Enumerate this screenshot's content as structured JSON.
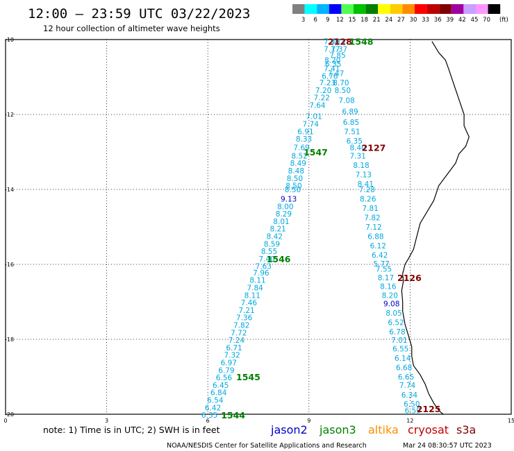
{
  "header": {
    "title": "12:00 – 23:59 UTC 03/22/2023",
    "subtitle": "12 hour collection of altimeter wave heights"
  },
  "legend": {
    "unit": "(ft)",
    "items": [
      {
        "label": "3",
        "color": "#808080"
      },
      {
        "label": "6",
        "color": "#00ffff"
      },
      {
        "label": "9",
        "color": "#00b4ff"
      },
      {
        "label": "12",
        "color": "#0000ff"
      },
      {
        "label": "15",
        "color": "#50ff50"
      },
      {
        "label": "18",
        "color": "#00c000"
      },
      {
        "label": "21",
        "color": "#008000"
      },
      {
        "label": "24",
        "color": "#ffff00"
      },
      {
        "label": "27",
        "color": "#ffcc00"
      },
      {
        "label": "30",
        "color": "#ff8c00"
      },
      {
        "label": "33",
        "color": "#ff0000"
      },
      {
        "label": "36",
        "color": "#c00000"
      },
      {
        "label": "39",
        "color": "#800000"
      },
      {
        "label": "42",
        "color": "#a000a0"
      },
      {
        "label": "45",
        "color": "#c8a0ff"
      },
      {
        "label": "70",
        "color": "#ff96ff"
      },
      {
        "label": "",
        "color": "#000000"
      }
    ]
  },
  "map": {
    "lon_ticks": [
      "0",
      "3",
      "6",
      "9",
      "12",
      "15"
    ],
    "lat_ticks": [
      "-10",
      "-12",
      "-14",
      "-16",
      "-18",
      "-20"
    ],
    "colors": {
      "swh_light": "#00a8e0",
      "swh_dark": "#0000c0",
      "jason3": "#008000",
      "cryosat": "#800000",
      "coast": "#000000",
      "grid": "#000000"
    },
    "coastline": [
      [
        12.65,
        -10.05
      ],
      [
        12.85,
        -10.35
      ],
      [
        13.05,
        -10.55
      ],
      [
        13.15,
        -10.8
      ],
      [
        13.3,
        -11.2
      ],
      [
        13.45,
        -11.6
      ],
      [
        13.6,
        -12.0
      ],
      [
        13.6,
        -12.3
      ],
      [
        13.75,
        -12.6
      ],
      [
        13.65,
        -12.85
      ],
      [
        13.45,
        -13.05
      ],
      [
        13.35,
        -13.3
      ],
      [
        13.1,
        -13.6
      ],
      [
        12.85,
        -13.9
      ],
      [
        12.7,
        -14.3
      ],
      [
        12.5,
        -14.6
      ],
      [
        12.3,
        -14.9
      ],
      [
        12.2,
        -15.25
      ],
      [
        12.1,
        -15.6
      ],
      [
        11.95,
        -15.85
      ],
      [
        11.85,
        -16.0
      ],
      [
        11.78,
        -16.25
      ],
      [
        11.8,
        -16.45
      ],
      [
        11.75,
        -16.7
      ],
      [
        11.78,
        -17.0
      ],
      [
        11.78,
        -17.25
      ],
      [
        11.85,
        -17.6
      ],
      [
        11.95,
        -17.9
      ],
      [
        12.05,
        -18.2
      ],
      [
        12.05,
        -18.45
      ],
      [
        12.1,
        -18.7
      ],
      [
        12.3,
        -18.95
      ],
      [
        12.45,
        -19.2
      ],
      [
        12.55,
        -19.45
      ],
      [
        12.7,
        -19.7
      ],
      [
        12.85,
        -19.9
      ],
      [
        12.98,
        -20.0
      ]
    ],
    "observations": [
      {
        "lon": 9.68,
        "lat": -10.05,
        "v": "7.49"
      },
      {
        "lon": 9.9,
        "lat": -10.05,
        "v": "7.3"
      },
      {
        "lon": 9.68,
        "lat": -10.25,
        "v": "7.17"
      },
      {
        "lon": 9.9,
        "lat": -10.25,
        "v": "7.37"
      },
      {
        "lon": 9.85,
        "lat": -10.42,
        "v": "7.85"
      },
      {
        "lon": 9.7,
        "lat": -10.55,
        "v": "8.20"
      },
      {
        "lon": 9.72,
        "lat": -10.65,
        "v": "6.35"
      },
      {
        "lon": 9.68,
        "lat": -10.77,
        "v": "7.41"
      },
      {
        "lon": 9.8,
        "lat": -10.9,
        "v": "7.47"
      },
      {
        "lon": 9.62,
        "lat": -10.97,
        "v": "6.78"
      },
      {
        "lon": 9.55,
        "lat": -11.15,
        "v": "7.23"
      },
      {
        "lon": 9.95,
        "lat": -11.15,
        "v": "8.70"
      },
      {
        "lon": 9.43,
        "lat": -11.35,
        "v": "7.20"
      },
      {
        "lon": 10.0,
        "lat": -11.35,
        "v": "8.50"
      },
      {
        "lon": 9.38,
        "lat": -11.55,
        "v": "7.22"
      },
      {
        "lon": 10.12,
        "lat": -11.62,
        "v": "7.08"
      },
      {
        "lon": 9.25,
        "lat": -11.75,
        "v": "7.64"
      },
      {
        "lon": 10.22,
        "lat": -11.92,
        "v": "6.89"
      },
      {
        "lon": 9.15,
        "lat": -12.05,
        "v": "7.01"
      },
      {
        "lon": 10.25,
        "lat": -12.2,
        "v": "6.85"
      },
      {
        "lon": 9.05,
        "lat": -12.25,
        "v": "7.74"
      },
      {
        "lon": 10.28,
        "lat": -12.45,
        "v": "7.51"
      },
      {
        "lon": 8.9,
        "lat": -12.45,
        "v": "6.91"
      },
      {
        "lon": 8.85,
        "lat": -12.65,
        "v": "8.33"
      },
      {
        "lon": 10.35,
        "lat": -12.7,
        "v": "6.35"
      },
      {
        "lon": 10.45,
        "lat": -12.88,
        "v": "8.40"
      },
      {
        "lon": 8.78,
        "lat": -12.88,
        "v": "7.69"
      },
      {
        "lon": 10.45,
        "lat": -13.1,
        "v": "7.31"
      },
      {
        "lon": 8.72,
        "lat": -13.1,
        "v": "8.52"
      },
      {
        "lon": 8.68,
        "lat": -13.3,
        "v": "8.49"
      },
      {
        "lon": 10.55,
        "lat": -13.35,
        "v": "8.18"
      },
      {
        "lon": 8.62,
        "lat": -13.5,
        "v": "8.48"
      },
      {
        "lon": 10.62,
        "lat": -13.6,
        "v": "7.13"
      },
      {
        "lon": 8.58,
        "lat": -13.7,
        "v": "8.50"
      },
      {
        "lon": 10.68,
        "lat": -13.85,
        "v": "8.41"
      },
      {
        "lon": 8.55,
        "lat": -13.9,
        "v": "8.50"
      },
      {
        "lon": 10.72,
        "lat": -14.0,
        "v": "7.28"
      },
      {
        "lon": 8.52,
        "lat": -14.0,
        "v": "8.50"
      },
      {
        "lon": 8.4,
        "lat": -14.25,
        "v": "9.13",
        "dark": true
      },
      {
        "lon": 10.75,
        "lat": -14.25,
        "v": "8.26"
      },
      {
        "lon": 8.3,
        "lat": -14.45,
        "v": "8.00"
      },
      {
        "lon": 10.82,
        "lat": -14.5,
        "v": "7.81"
      },
      {
        "lon": 8.25,
        "lat": -14.65,
        "v": "8.29"
      },
      {
        "lon": 10.88,
        "lat": -14.75,
        "v": "7.82"
      },
      {
        "lon": 8.18,
        "lat": -14.85,
        "v": "8.01"
      },
      {
        "lon": 10.92,
        "lat": -15.0,
        "v": "7.12"
      },
      {
        "lon": 8.08,
        "lat": -15.05,
        "v": "8.21"
      },
      {
        "lon": 10.98,
        "lat": -15.25,
        "v": "6.88"
      },
      {
        "lon": 7.98,
        "lat": -15.25,
        "v": "8.42"
      },
      {
        "lon": 7.9,
        "lat": -15.45,
        "v": "8.59"
      },
      {
        "lon": 11.05,
        "lat": -15.5,
        "v": "6.12"
      },
      {
        "lon": 7.82,
        "lat": -15.65,
        "v": "8.55"
      },
      {
        "lon": 11.1,
        "lat": -15.75,
        "v": "6.42"
      },
      {
        "lon": 7.75,
        "lat": -15.85,
        "v": "7.40"
      },
      {
        "lon": 11.15,
        "lat": -15.98,
        "v": "5.77"
      },
      {
        "lon": 7.65,
        "lat": -16.05,
        "v": "7.63"
      },
      {
        "lon": 11.22,
        "lat": -16.12,
        "v": "7.55"
      },
      {
        "lon": 7.58,
        "lat": -16.22,
        "v": "7.96"
      },
      {
        "lon": 11.28,
        "lat": -16.35,
        "v": "8.17"
      },
      {
        "lon": 7.48,
        "lat": -16.42,
        "v": "8.11"
      },
      {
        "lon": 11.35,
        "lat": -16.58,
        "v": "8.16"
      },
      {
        "lon": 7.4,
        "lat": -16.62,
        "v": "7.84"
      },
      {
        "lon": 11.4,
        "lat": -16.82,
        "v": "8.20"
      },
      {
        "lon": 7.32,
        "lat": -16.82,
        "v": "8.11"
      },
      {
        "lon": 7.22,
        "lat": -17.02,
        "v": "7.46"
      },
      {
        "lon": 11.45,
        "lat": -17.05,
        "v": "9.08",
        "dark": true
      },
      {
        "lon": 7.15,
        "lat": -17.22,
        "v": "7.21"
      },
      {
        "lon": 11.52,
        "lat": -17.3,
        "v": "8.05"
      },
      {
        "lon": 7.08,
        "lat": -17.42,
        "v": "7.36"
      },
      {
        "lon": 11.58,
        "lat": -17.55,
        "v": "6.52"
      },
      {
        "lon": 7.0,
        "lat": -17.62,
        "v": "7.82"
      },
      {
        "lon": 11.62,
        "lat": -17.8,
        "v": "6.78"
      },
      {
        "lon": 6.92,
        "lat": -17.82,
        "v": "7.72"
      },
      {
        "lon": 6.85,
        "lat": -18.02,
        "v": "7.24"
      },
      {
        "lon": 11.68,
        "lat": -18.02,
        "v": "7.01"
      },
      {
        "lon": 6.78,
        "lat": -18.22,
        "v": "6.71"
      },
      {
        "lon": 11.72,
        "lat": -18.25,
        "v": "6.55"
      },
      {
        "lon": 6.72,
        "lat": -18.42,
        "v": "7.32"
      },
      {
        "lon": 11.78,
        "lat": -18.5,
        "v": "6.14"
      },
      {
        "lon": 6.62,
        "lat": -18.62,
        "v": "6.97"
      },
      {
        "lon": 11.82,
        "lat": -18.75,
        "v": "6.68"
      },
      {
        "lon": 6.55,
        "lat": -18.82,
        "v": "6.79"
      },
      {
        "lon": 11.88,
        "lat": -19.0,
        "v": "6.65"
      },
      {
        "lon": 6.48,
        "lat": -19.02,
        "v": "6.56"
      },
      {
        "lon": 6.38,
        "lat": -19.22,
        "v": "6.45"
      },
      {
        "lon": 11.92,
        "lat": -19.22,
        "v": "7.74"
      },
      {
        "lon": 6.32,
        "lat": -19.42,
        "v": "6.84"
      },
      {
        "lon": 11.98,
        "lat": -19.48,
        "v": "6.34"
      },
      {
        "lon": 6.22,
        "lat": -19.62,
        "v": "6.54"
      },
      {
        "lon": 12.05,
        "lat": -19.72,
        "v": "6.50"
      },
      {
        "lon": 6.15,
        "lat": -19.82,
        "v": "6.42"
      },
      {
        "lon": 12.08,
        "lat": -19.9,
        "v": "6.59"
      },
      {
        "lon": 6.05,
        "lat": -20.02,
        "v": "6.35"
      }
    ],
    "pass_labels": [
      {
        "lon": 9.92,
        "lat": -10.05,
        "text": "2128",
        "sat": "cryosat"
      },
      {
        "lon": 10.55,
        "lat": -10.05,
        "text": "1548",
        "sat": "jason3"
      },
      {
        "lon": 9.2,
        "lat": -13.0,
        "text": "1547",
        "sat": "jason3"
      },
      {
        "lon": 10.92,
        "lat": -12.88,
        "text": "2127",
        "sat": "cryosat"
      },
      {
        "lon": 8.1,
        "lat": -15.85,
        "text": "1546",
        "sat": "jason3"
      },
      {
        "lon": 11.98,
        "lat": -16.35,
        "text": "2126",
        "sat": "cryosat"
      },
      {
        "lon": 7.2,
        "lat": -19.0,
        "text": "1545",
        "sat": "jason3"
      },
      {
        "lon": 12.55,
        "lat": -19.85,
        "text": "2125",
        "sat": "cryosat"
      },
      {
        "lon": 6.75,
        "lat": -20.02,
        "text": "1544",
        "sat": "jason3"
      }
    ]
  },
  "footer": {
    "note": "note:  1) Time is in UTC; 2) SWH is in feet",
    "satellites": [
      {
        "name": "jason2",
        "color": "#0000c8"
      },
      {
        "name": "jason3",
        "color": "#008000"
      },
      {
        "name": "altika",
        "color": "#ff8c00"
      },
      {
        "name": "cryosat",
        "color": "#c00000"
      },
      {
        "name": "s3a",
        "color": "#800000"
      }
    ],
    "credit": "NOAA/NESDIS Center for Satellite Applications and Research",
    "timestamp": "Mar 24 08:30:57 UTC 2023"
  }
}
